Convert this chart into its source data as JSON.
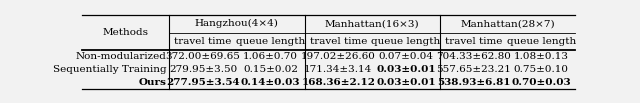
{
  "col_headers_top": [
    "Hangzhou(4×4)",
    "Manhattan(16×3)",
    "Manhattan(28×7)"
  ],
  "col_headers_sub": [
    "travel time",
    "queue length",
    "travel time",
    "queue length",
    "travel time",
    "queue length"
  ],
  "row_labels": [
    "Non-modularized",
    "Sequentially Training",
    "Ours"
  ],
  "row_bold": [
    false,
    false,
    true
  ],
  "methods_label": "Methods",
  "data": [
    [
      "372.00±69.65",
      "1.06±0.70",
      "197.02±26.60",
      "0.07±0.04",
      "704.33±62.80",
      "1.08±0.13"
    ],
    [
      "279.95±3.50",
      "0.15±0.02",
      "171.34±3.14",
      "0.03±0.01",
      "557.65±23.21",
      "0.75±0.10"
    ],
    [
      "277.95±3.54",
      "0.14±0.03",
      "168.36±2.12",
      "0.03±0.01",
      "538.93±6.81",
      "0.70±0.03"
    ]
  ],
  "bold_cells": [
    [
      false,
      false,
      false,
      false,
      false,
      false
    ],
    [
      false,
      false,
      false,
      true,
      false,
      false
    ],
    [
      true,
      true,
      true,
      true,
      true,
      true
    ]
  ],
  "bg_color": "#f2f2f2",
  "font_size": 7.5,
  "header_font_size": 7.5,
  "fig_width": 6.4,
  "fig_height": 1.03
}
